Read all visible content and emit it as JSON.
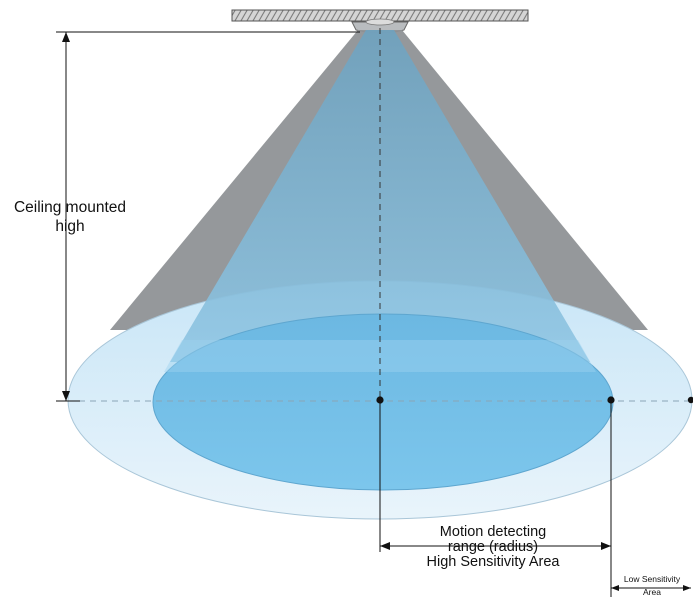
{
  "labels": {
    "ceiling_line1": "Ceiling mounted",
    "ceiling_line2": "high",
    "motion_line1": "Motion detecting",
    "motion_line2": "range (radius)",
    "motion_line3": "High Sensitivity Area",
    "low_line1": "Low Sensitivity",
    "low_line2": "Area"
  },
  "colors": {
    "outer_cone": "#8f9296",
    "inner_cone": "#6aa3c2",
    "outer_ellipse": "#dcecf6",
    "inner_ellipse": "#78c1e8",
    "ceiling": "#9a9a9a",
    "line": "#111111"
  }
}
